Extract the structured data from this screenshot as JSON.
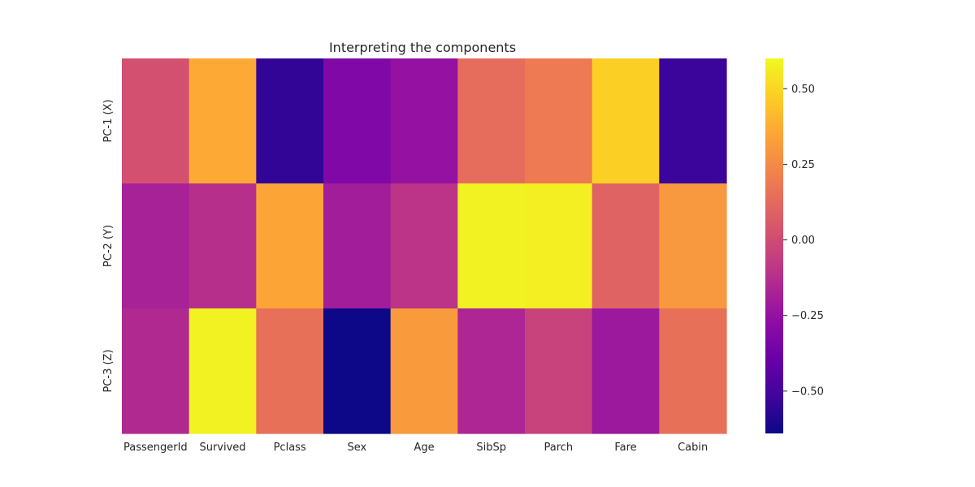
{
  "chart_data": {
    "type": "heatmap",
    "title": "Interpreting the components",
    "xlabel": "",
    "ylabel": "",
    "x_categories": [
      "PassengerId",
      "Survived",
      "Pclass",
      "Sex",
      "Age",
      "SibSp",
      "Parch",
      "Fare",
      "Cabin"
    ],
    "y_categories": [
      "PC-1 (X)",
      "PC-2 (Y)",
      "PC-3 (Z)"
    ],
    "values": [
      [
        0.02,
        0.36,
        -0.55,
        -0.32,
        -0.25,
        0.14,
        0.19,
        0.48,
        -0.53
      ],
      [
        -0.18,
        -0.12,
        0.35,
        -0.2,
        -0.1,
        0.58,
        0.57,
        0.1,
        0.3
      ],
      [
        -0.15,
        0.58,
        0.15,
        -0.64,
        0.31,
        -0.16,
        -0.04,
        -0.22,
        0.15
      ]
    ],
    "colormap": "plasma",
    "vmin": -0.64,
    "vmax": 0.6,
    "colorbar_ticks": [
      0.5,
      0.25,
      0.0,
      -0.25,
      -0.5
    ],
    "colorbar_tick_labels": [
      "0.50",
      "0.25",
      "0.00",
      "−0.25",
      "−0.50"
    ],
    "grid": false
  }
}
